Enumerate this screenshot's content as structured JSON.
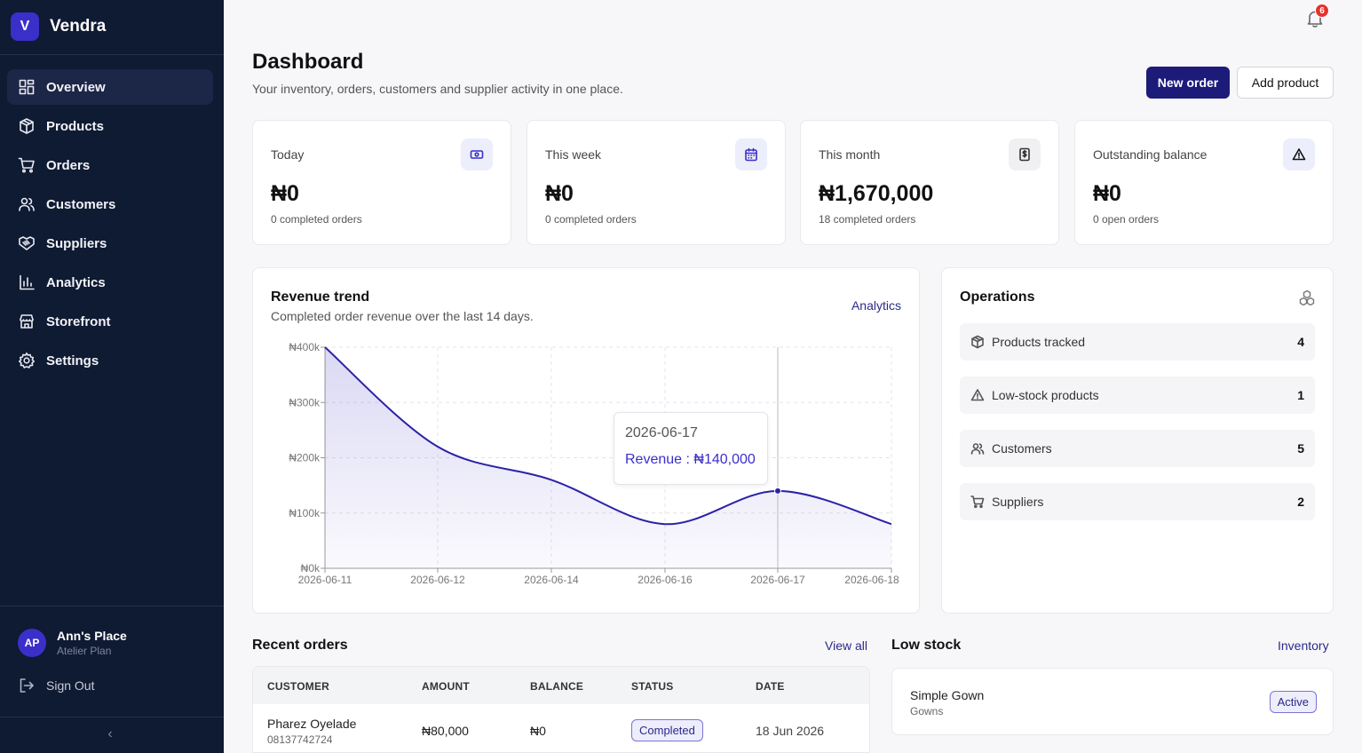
{
  "brand": {
    "logo_letter": "V",
    "name": "Vendra"
  },
  "sidebar": {
    "items": [
      {
        "label": "Overview",
        "icon": "grid-icon",
        "active": true
      },
      {
        "label": "Products",
        "icon": "box-icon"
      },
      {
        "label": "Orders",
        "icon": "cart-icon"
      },
      {
        "label": "Customers",
        "icon": "users-icon"
      },
      {
        "label": "Suppliers",
        "icon": "handshake-icon"
      },
      {
        "label": "Analytics",
        "icon": "bar-chart-icon"
      },
      {
        "label": "Storefront",
        "icon": "store-icon"
      },
      {
        "label": "Settings",
        "icon": "gear-icon"
      }
    ],
    "user": {
      "initials": "AP",
      "name": "Ann's Place",
      "plan": "Atelier Plan"
    },
    "signout_label": "Sign Out",
    "collapse_glyph": "‹"
  },
  "notifications": {
    "count": "6"
  },
  "header": {
    "title": "Dashboard",
    "subtitle": "Your inventory, orders, customers and supplier activity in one place.",
    "primary_button": "New order",
    "secondary_button": "Add product"
  },
  "stats": [
    {
      "label": "Today",
      "value": "₦0",
      "sub": "0 completed orders",
      "icon": "banknote-icon"
    },
    {
      "label": "This week",
      "value": "₦0",
      "sub": "0 completed orders",
      "icon": "calendar-icon"
    },
    {
      "label": "This month",
      "value": "₦1,670,000",
      "sub": "18 completed orders",
      "icon": "receipt-icon"
    },
    {
      "label": "Outstanding balance",
      "value": "₦0",
      "sub": "0 open orders",
      "icon": "alert-triangle-icon"
    }
  ],
  "revenue": {
    "title": "Revenue trend",
    "subtitle": "Completed order revenue over the last 14 days.",
    "link": "Analytics",
    "tooltip": {
      "date": "2026-06-17",
      "label": "Revenue : ₦140,000"
    }
  },
  "chart_data": {
    "type": "area",
    "x": [
      "2026-06-11",
      "2026-06-12",
      "2026-06-14",
      "2026-06-16",
      "2026-06-17",
      "2026-06-18"
    ],
    "series": [
      {
        "values": [
          400000,
          220000,
          160000,
          80000,
          140000,
          80000
        ]
      }
    ],
    "x_ticks": [
      "2026-06-11",
      "2026-06-12",
      "2026-06-14",
      "2026-06-16",
      "2026-06-17",
      "2026-06-18"
    ],
    "y_ticks": [
      "₦0k",
      "₦100k",
      "₦200k",
      "₦300k",
      "₦400k"
    ],
    "ylim": [
      0,
      400000
    ],
    "grid": true,
    "highlight": {
      "x": "2026-06-17",
      "y": 140000
    },
    "color": "#2a22a8"
  },
  "operations": {
    "title": "Operations",
    "rows": [
      {
        "label": "Products tracked",
        "count": "4",
        "icon": "box-icon"
      },
      {
        "label": "Low-stock products",
        "count": "1",
        "icon": "alert-triangle-icon"
      },
      {
        "label": "Customers",
        "count": "5",
        "icon": "users-icon"
      },
      {
        "label": "Suppliers",
        "count": "2",
        "icon": "cart-icon"
      }
    ]
  },
  "recent_orders": {
    "title": "Recent orders",
    "link": "View all",
    "columns": [
      "CUSTOMER",
      "AMOUNT",
      "BALANCE",
      "STATUS",
      "DATE"
    ],
    "rows": [
      {
        "customer": "Pharez Oyelade",
        "phone": "08137742724",
        "amount": "₦80,000",
        "balance": "₦0",
        "status": "Completed",
        "date": "18 Jun 2026"
      }
    ]
  },
  "low_stock": {
    "title": "Low stock",
    "link": "Inventory",
    "items": [
      {
        "name": "Simple Gown",
        "category": "Gowns",
        "status": "Active"
      }
    ]
  }
}
